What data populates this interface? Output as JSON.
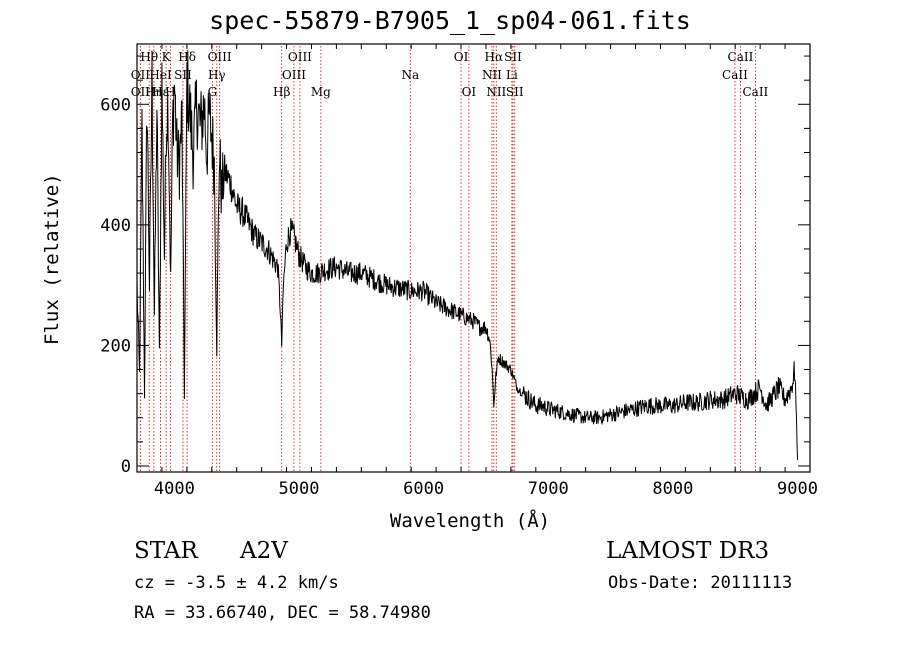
{
  "chart_data": {
    "type": "line",
    "title": "spec-55879-B7905_1_sp04-061.fits",
    "xlabel": "Wavelength (Å)",
    "ylabel": "Flux (relative)",
    "xlim": [
      3700,
      9100
    ],
    "ylim": [
      -10,
      700
    ],
    "x_ticks": [
      4000,
      5000,
      6000,
      7000,
      8000,
      9000
    ],
    "y_ticks": [
      0,
      200,
      400,
      600
    ],
    "grid": false,
    "series": [
      {
        "name": "flux",
        "x": [
          3700,
          3720,
          3740,
          3760,
          3780,
          3800,
          3820,
          3840,
          3860,
          3880,
          3900,
          3920,
          3935,
          3950,
          3970,
          3985,
          4000,
          4020,
          4040,
          4060,
          4080,
          4100,
          4120,
          4150,
          4180,
          4210,
          4240,
          4260,
          4280,
          4300,
          4320,
          4340,
          4360,
          4380,
          4400,
          4450,
          4500,
          4550,
          4600,
          4650,
          4700,
          4750,
          4800,
          4830,
          4850,
          4861,
          4875,
          4900,
          4930,
          4960,
          5000,
          5050,
          5100,
          5150,
          5200,
          5300,
          5400,
          5500,
          5600,
          5700,
          5800,
          5900,
          6000,
          6100,
          6200,
          6300,
          6400,
          6450,
          6500,
          6530,
          6550,
          6563,
          6580,
          6600,
          6650,
          6700,
          6750,
          6800,
          6850,
          6900,
          6950,
          7000,
          7100,
          7200,
          7300,
          7400,
          7500,
          7600,
          7700,
          7800,
          7900,
          8000,
          8100,
          8200,
          8300,
          8400,
          8500,
          8600,
          8700,
          8750,
          8800,
          8850,
          8900,
          8950,
          8980,
          9000
        ],
        "values": [
          300,
          150,
          560,
          120,
          620,
          300,
          640,
          250,
          600,
          180,
          640,
          350,
          580,
          600,
          300,
          560,
          640,
          520,
          500,
          580,
          120,
          640,
          600,
          520,
          600,
          560,
          600,
          520,
          580,
          550,
          500,
          200,
          520,
          450,
          490,
          470,
          430,
          420,
          400,
          380,
          370,
          360,
          340,
          330,
          260,
          200,
          300,
          370,
          390,
          380,
          350,
          330,
          320,
          320,
          325,
          330,
          320,
          320,
          310,
          300,
          295,
          290,
          290,
          270,
          260,
          250,
          240,
          230,
          230,
          210,
          160,
          100,
          150,
          180,
          170,
          160,
          130,
          120,
          110,
          100,
          100,
          95,
          90,
          85,
          80,
          80,
          85,
          90,
          95,
          100,
          100,
          100,
          105,
          105,
          110,
          110,
          120,
          110,
          130,
          100,
          115,
          130,
          110,
          130,
          160,
          10
        ]
      }
    ],
    "line_markers": [
      {
        "label": "Hθ",
        "x": 3798,
        "row": 0
      },
      {
        "label": "OII",
        "x": 3727,
        "row": 1
      },
      {
        "label": "OII",
        "x": 3727,
        "row": 2
      },
      {
        "label": "Hη",
        "x": 3835,
        "row": 2
      },
      {
        "label": "Hε",
        "x": 3889,
        "row": 2
      },
      {
        "label": "HeI",
        "x": 3889,
        "row": 1
      },
      {
        "label": "K",
        "x": 3934,
        "row": 0
      },
      {
        "label": "H",
        "x": 3968,
        "row": 2
      },
      {
        "label": "SII",
        "x": 4069,
        "row": 1
      },
      {
        "label": "Hδ",
        "x": 4102,
        "row": 0
      },
      {
        "label": "OIII",
        "x": 4363,
        "row": 0
      },
      {
        "label": "Hγ",
        "x": 4340,
        "row": 1
      },
      {
        "label": "G",
        "x": 4305,
        "row": 2
      },
      {
        "label": "Hβ",
        "x": 4861,
        "row": 2
      },
      {
        "label": "OIII",
        "x": 5007,
        "row": 0
      },
      {
        "label": "OIII",
        "x": 4959,
        "row": 1
      },
      {
        "label": "Mg",
        "x": 5175,
        "row": 2
      },
      {
        "label": "Na",
        "x": 5893,
        "row": 1
      },
      {
        "label": "OI",
        "x": 6300,
        "row": 0
      },
      {
        "label": "OI",
        "x": 6363,
        "row": 2
      },
      {
        "label": "Hα",
        "x": 6563,
        "row": 0
      },
      {
        "label": "NII",
        "x": 6548,
        "row": 1
      },
      {
        "label": "NII",
        "x": 6583,
        "row": 2
      },
      {
        "label": "SII",
        "x": 6717,
        "row": 0
      },
      {
        "label": "Li",
        "x": 6708,
        "row": 1
      },
      {
        "label": "SII",
        "x": 6731,
        "row": 2
      },
      {
        "label": "CaII",
        "x": 8542,
        "row": 0
      },
      {
        "label": "CaII",
        "x": 8498,
        "row": 1
      },
      {
        "label": "CaII",
        "x": 8662,
        "row": 2
      }
    ]
  },
  "info": {
    "obj_class": "STAR",
    "obj_subclass": "A2V",
    "survey": "LAMOST DR3",
    "cz": "cz = -3.5 ± 4.2 km/s",
    "obs_date": "Obs-Date: 20111113",
    "radec": "RA =  33.66740, DEC =  58.74980"
  },
  "colors": {
    "spectrum": "#000000",
    "marker_line": "#cc2222",
    "axes": "#000000",
    "background": "#ffffff"
  }
}
